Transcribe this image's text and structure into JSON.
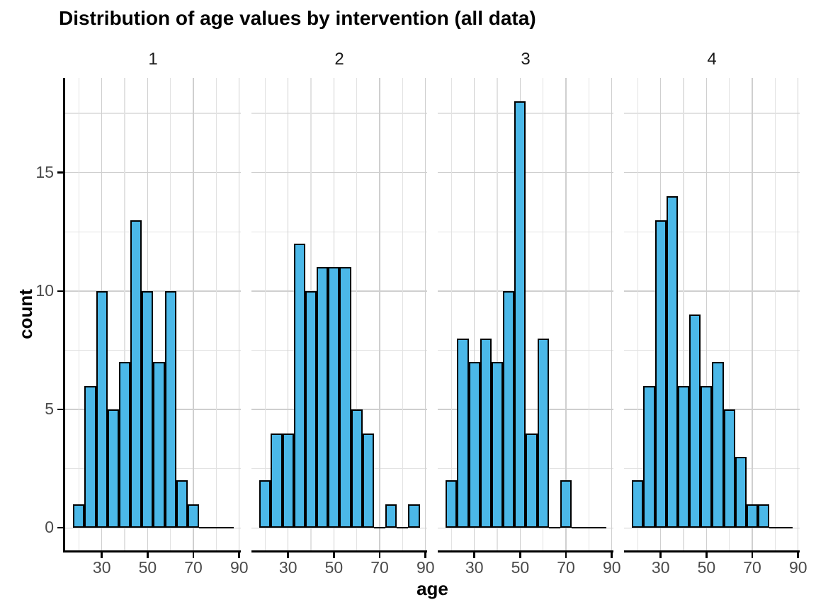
{
  "title": "Distribution of age values by intervention (all data)",
  "axes": {
    "x_label": "age",
    "y_label": "count",
    "x_tick_labels": [
      "30",
      "50",
      "70",
      "90"
    ],
    "y_tick_labels": [
      "0",
      "5",
      "10",
      "15"
    ]
  },
  "colors": {
    "bar_fill": "#4BB8E8",
    "bar_stroke": "#000000",
    "grid_major": "#CFCFCF",
    "grid_minor": "#E2E2E2",
    "axis_line": "#000000",
    "tick_label_text": "#4a4a4a",
    "title_text": "#000000"
  },
  "chart_data": {
    "type": "bar",
    "subtype": "faceted-histogram",
    "title": "Distribution of age values by intervention (all data)",
    "xlabel": "age",
    "ylabel": "count",
    "facet_variable": "intervention",
    "bin_width": 5,
    "bin_centers": [
      20,
      25,
      30,
      35,
      40,
      45,
      50,
      55,
      60,
      65,
      70,
      75,
      80,
      85
    ],
    "x_ticks": [
      30,
      50,
      70,
      90
    ],
    "y_ticks": [
      0,
      5,
      10,
      15
    ],
    "y_minor_gridlines": [
      2.5,
      7.5,
      12.5,
      17.5
    ],
    "x_minor_gridlines": [
      20,
      40,
      60,
      80
    ],
    "xlim": [
      14,
      90.7
    ],
    "ylim": [
      -0.95,
      19.0
    ],
    "grid": "major+minor",
    "legend": "none",
    "facets": [
      {
        "label": "1",
        "values": [
          1,
          6,
          10,
          5,
          7,
          13,
          10,
          7,
          10,
          2,
          1,
          0,
          0,
          0
        ]
      },
      {
        "label": "2",
        "values": [
          2,
          4,
          4,
          12,
          10,
          11,
          11,
          11,
          5,
          4,
          0,
          1,
          0,
          1
        ]
      },
      {
        "label": "3",
        "values": [
          2,
          8,
          7,
          8,
          7,
          10,
          18,
          4,
          8,
          0,
          2,
          0,
          0,
          0
        ]
      },
      {
        "label": "4",
        "values": [
          2,
          6,
          13,
          14,
          6,
          9,
          6,
          7,
          5,
          3,
          1,
          1,
          0,
          0
        ]
      }
    ]
  }
}
